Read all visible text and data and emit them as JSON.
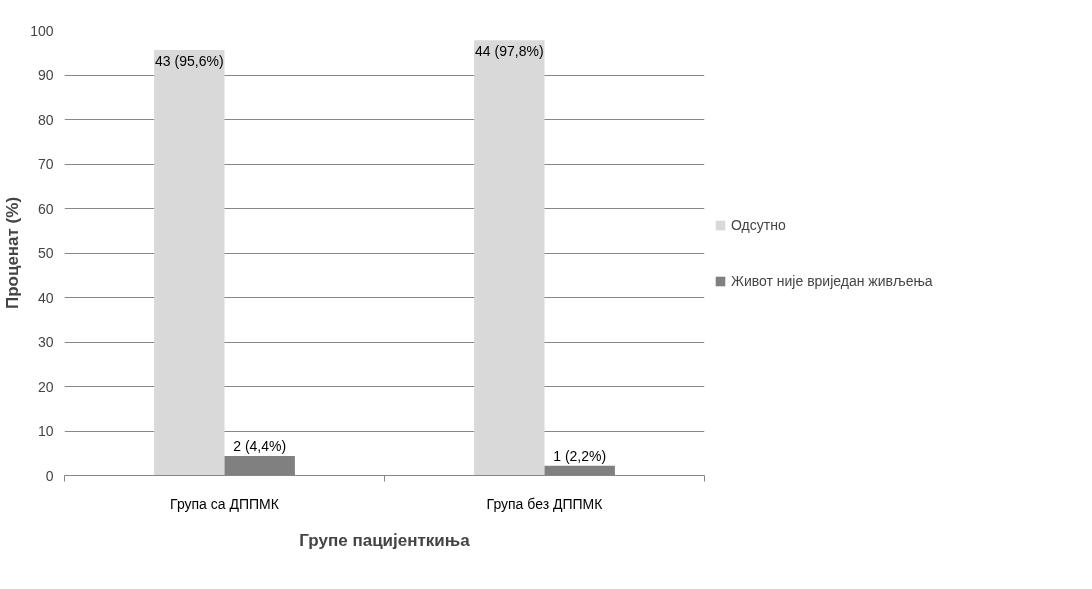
{
  "chart_data": {
    "type": "bar",
    "xlabel": "Групе пацијенткиња",
    "ylabel": "Проценат (%)",
    "categories": [
      "Група са ДППМК",
      "Група без ДППМК"
    ],
    "series": [
      {
        "name": "Одсутно",
        "color": "#d9d9d9",
        "values": [
          95.6,
          97.8
        ],
        "value_labels": [
          "43 (95,6%)",
          "44 (97,8%)"
        ]
      },
      {
        "name": "Живот није вриједан живљења",
        "color": "#808080",
        "values": [
          4.4,
          2.2
        ],
        "value_labels": [
          "2 (4,4%)",
          "1 (2,2%)"
        ]
      }
    ],
    "ylim": [
      0,
      100
    ],
    "yticks": [
      0,
      10,
      20,
      30,
      40,
      50,
      60,
      70,
      80,
      90,
      100
    ],
    "grid": "y",
    "legend": "right"
  }
}
